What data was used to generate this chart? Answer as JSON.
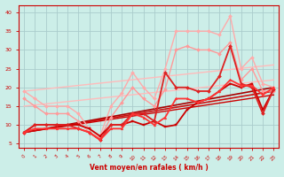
{
  "bg_color": "#cceee8",
  "grid_color": "#aacccc",
  "xlabel": "Vent moyen/en rafales ( km/h )",
  "xlim": [
    -0.5,
    23.5
  ],
  "ylim": [
    4,
    42
  ],
  "yticks": [
    5,
    10,
    15,
    20,
    25,
    30,
    35,
    40
  ],
  "xticks": [
    0,
    1,
    2,
    3,
    4,
    5,
    6,
    7,
    8,
    9,
    10,
    11,
    12,
    13,
    14,
    15,
    16,
    17,
    18,
    19,
    20,
    21,
    22,
    23
  ],
  "lines": [
    {
      "x": [
        0,
        1,
        2,
        3,
        4,
        5,
        6,
        7,
        8,
        9,
        10,
        11,
        12,
        13,
        14,
        15,
        16,
        17,
        18,
        19,
        20,
        21,
        22,
        23
      ],
      "y": [
        19,
        17,
        15,
        15,
        15,
        13,
        9,
        7,
        15,
        18.5,
        24,
        20,
        17,
        25,
        35,
        35,
        35,
        35,
        34,
        39,
        25,
        28,
        21,
        20
      ],
      "color": "#ffaaaa",
      "lw": 1.0,
      "marker": "D",
      "ms": 2.0
    },
    {
      "x": [
        0,
        23
      ],
      "y": [
        19,
        26
      ],
      "color": "#ffbbbb",
      "lw": 1.0,
      "marker": null,
      "ms": 0
    },
    {
      "x": [
        0,
        23
      ],
      "y": [
        15,
        22
      ],
      "color": "#ffbbbb",
      "lw": 1.0,
      "marker": null,
      "ms": 0
    },
    {
      "x": [
        0,
        1,
        2,
        3,
        4,
        5,
        6,
        7,
        8,
        9,
        10,
        11,
        12,
        13,
        14,
        15,
        16,
        17,
        18,
        19,
        20,
        21,
        22,
        23
      ],
      "y": [
        17,
        15,
        13,
        13,
        13,
        11,
        8,
        6.5,
        12,
        16,
        20,
        17,
        15,
        19.5,
        30,
        31,
        30,
        30,
        29,
        32,
        22,
        25,
        19,
        19
      ],
      "color": "#ff9999",
      "lw": 1.0,
      "marker": "D",
      "ms": 2.0
    },
    {
      "x": [
        0,
        1,
        2,
        3,
        4,
        5,
        6,
        7,
        8,
        9,
        10,
        11,
        12,
        13,
        14,
        15,
        16,
        17,
        18,
        19,
        20,
        21,
        22,
        23
      ],
      "y": [
        8,
        10,
        10,
        10,
        10,
        10,
        9,
        7,
        10,
        10,
        11,
        10,
        11,
        9.5,
        10,
        14,
        16,
        17,
        19,
        21,
        20,
        21,
        14,
        19.5
      ],
      "color": "#cc0000",
      "lw": 1.3,
      "marker": "s",
      "ms": 2.0
    },
    {
      "x": [
        0,
        23
      ],
      "y": [
        8,
        20
      ],
      "color": "#aa0000",
      "lw": 1.2,
      "marker": null,
      "ms": 0
    },
    {
      "x": [
        0,
        1,
        2,
        3,
        4,
        5,
        6,
        7,
        8,
        9,
        10,
        11,
        12,
        13,
        14,
        15,
        16,
        17,
        18,
        19,
        20,
        21,
        22,
        23
      ],
      "y": [
        8,
        10,
        10,
        10,
        10,
        9,
        8,
        6,
        10,
        10,
        13,
        13,
        11,
        24,
        20,
        20,
        19,
        19,
        23,
        31,
        21,
        20,
        13,
        19.5
      ],
      "color": "#dd2222",
      "lw": 1.3,
      "marker": "D",
      "ms": 2.0
    },
    {
      "x": [
        0,
        23
      ],
      "y": [
        8,
        19
      ],
      "color": "#cc1111",
      "lw": 1.2,
      "marker": null,
      "ms": 0
    },
    {
      "x": [
        0,
        1,
        2,
        3,
        4,
        5,
        6,
        7,
        8,
        9,
        10,
        11,
        12,
        13,
        14,
        15,
        16,
        17,
        18,
        19,
        20,
        21,
        22,
        23
      ],
      "y": [
        8,
        9,
        9,
        9,
        9,
        9,
        8,
        6,
        9,
        9,
        13,
        12,
        10,
        12,
        17,
        17,
        16,
        17,
        19,
        22,
        20.5,
        20.5,
        18,
        20
      ],
      "color": "#ff3333",
      "lw": 1.3,
      "marker": "^",
      "ms": 2.0
    },
    {
      "x": [
        0,
        23
      ],
      "y": [
        8,
        18
      ],
      "color": "#cc0000",
      "lw": 1.0,
      "marker": null,
      "ms": 0
    }
  ],
  "tick_color": "#cc0000",
  "label_color": "#cc0000",
  "spine_color": "#cc0000"
}
